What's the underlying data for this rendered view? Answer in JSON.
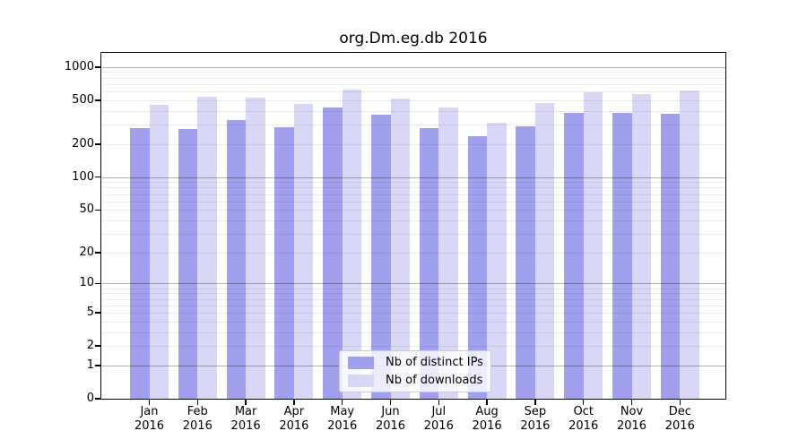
{
  "chart_data": {
    "type": "bar",
    "title": "org.Dm.eg.db 2016",
    "categories": [
      "Jan 2016",
      "Feb 2016",
      "Mar 2016",
      "Apr 2016",
      "May 2016",
      "Jun 2016",
      "Jul 2016",
      "Aug 2016",
      "Sep 2016",
      "Oct 2016",
      "Nov 2016",
      "Dec 2016"
    ],
    "x_months": [
      "Jan",
      "Feb",
      "Mar",
      "Apr",
      "May",
      "Jun",
      "Jul",
      "Aug",
      "Sep",
      "Oct",
      "Nov",
      "Dec"
    ],
    "x_year": "2016",
    "series": [
      {
        "name": "Nb of distinct IPs",
        "color": "#a0a0ee",
        "values": [
          281,
          276,
          331,
          287,
          426,
          368,
          279,
          237,
          292,
          385,
          385,
          378
        ]
      },
      {
        "name": "Nb of downloads",
        "color": "#d8d8f6",
        "values": [
          458,
          535,
          531,
          466,
          626,
          521,
          430,
          315,
          472,
          594,
          569,
          617
        ]
      }
    ],
    "y_ticks": [
      0,
      1,
      2,
      5,
      10,
      20,
      50,
      100,
      200,
      500,
      1000
    ],
    "y_minor_gridlines": [
      2,
      3,
      4,
      5,
      6,
      7,
      8,
      9,
      20,
      30,
      40,
      50,
      60,
      70,
      80,
      90,
      200,
      300,
      400,
      500,
      600,
      700,
      800,
      900
    ],
    "y_major_gridlines": [
      1,
      10,
      100,
      1000
    ],
    "y_scale": "log10(value+1)",
    "y_axis_top_value": 1342,
    "ylim": [
      0,
      1342
    ],
    "grid": true,
    "legend_position": "lower center"
  },
  "colors": {
    "distinct_ips": "#a0a0ee",
    "downloads": "#d8d8f6",
    "axis": "#000000",
    "major_grid": "rgba(0,0,0,0.30)",
    "minor_grid": "rgba(0,0,0,0.08)",
    "legend_border": "#cccccc",
    "background": "#ffffff"
  }
}
